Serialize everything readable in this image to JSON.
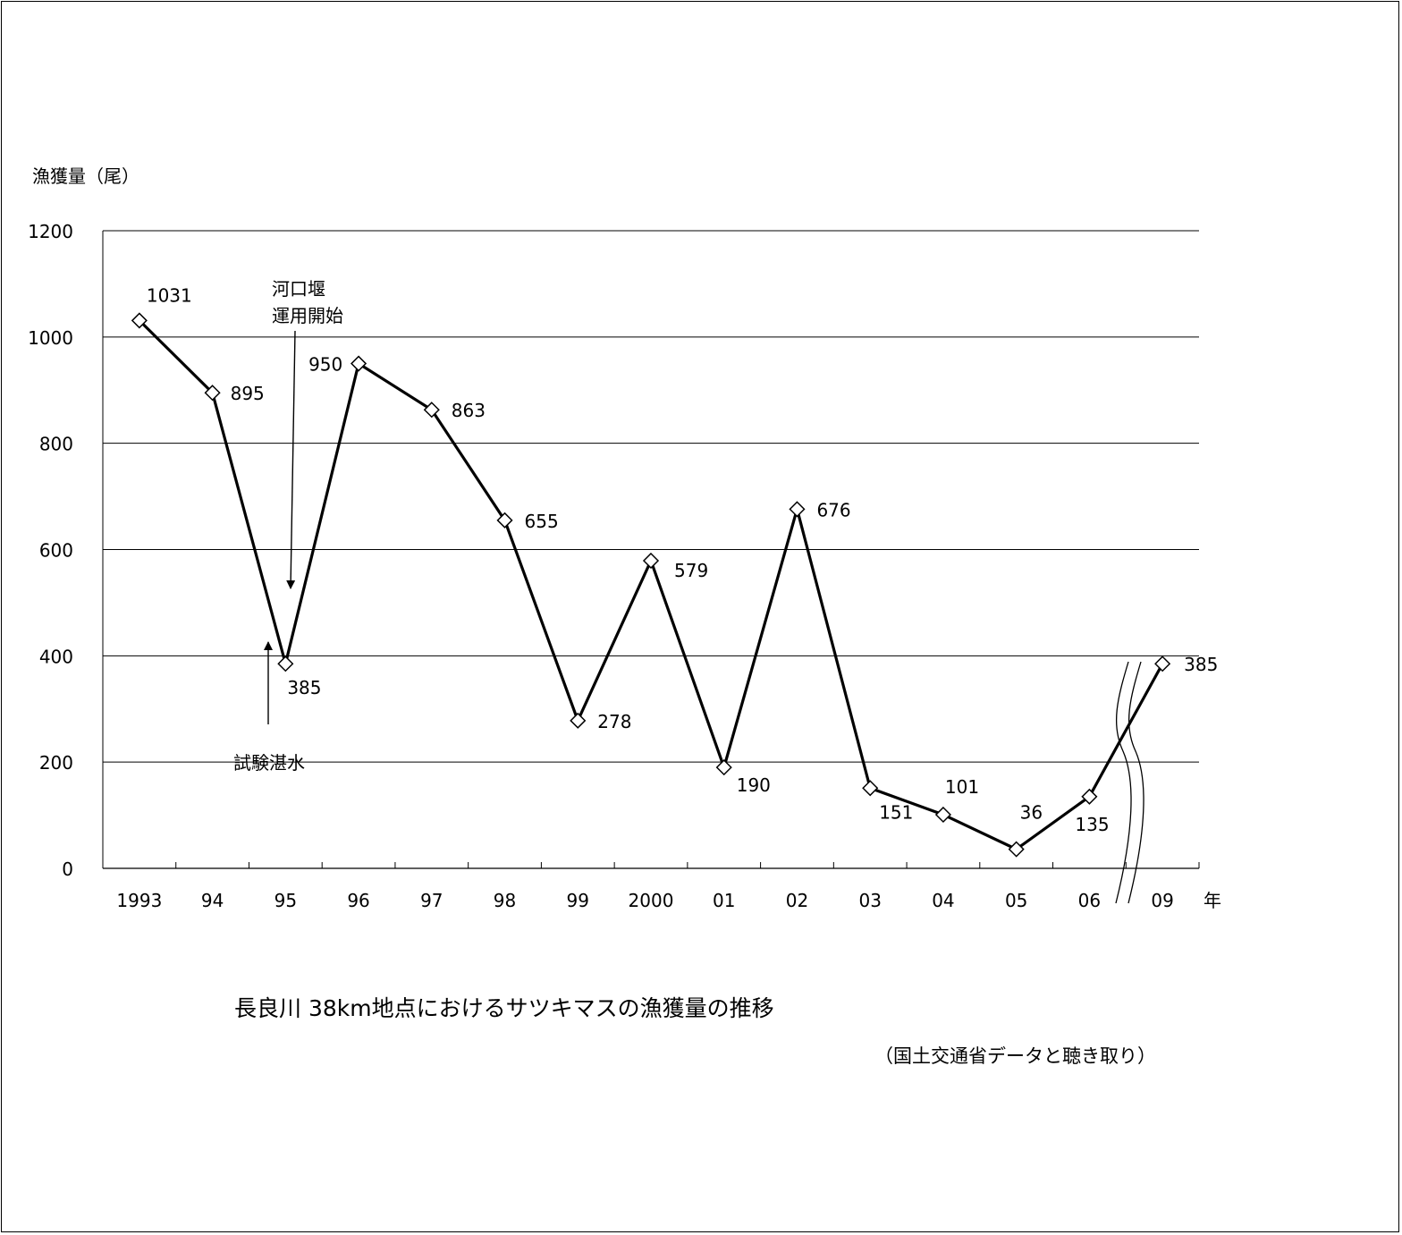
{
  "chart_data": {
    "type": "line",
    "title": "長良川 38km地点におけるサツキマスの漁獲量の推移",
    "source": "（国土交通省データと聴き取り）",
    "ylabel": "漁獲量（尾）",
    "xlabel": "年",
    "ylim": [
      0,
      1200
    ],
    "y_ticks": [
      "0",
      "200",
      "400",
      "600",
      "800",
      "1000",
      "1200"
    ],
    "grid": true,
    "categories": [
      "1993",
      "94",
      "95",
      "96",
      "97",
      "98",
      "99",
      "2000",
      "01",
      "02",
      "03",
      "04",
      "05",
      "06",
      "09"
    ],
    "series": [
      {
        "values": [
          1031,
          895,
          385,
          950,
          863,
          655,
          278,
          579,
          190,
          676,
          151,
          101,
          36,
          135,
          385
        ],
        "labels": [
          "1031",
          "895",
          "385",
          "950",
          "863",
          "655",
          "278",
          "579",
          "190",
          "676",
          "151",
          "101",
          "36",
          "135",
          "385"
        ]
      }
    ],
    "axis_break_between": [
      "06",
      "09"
    ],
    "annotations": [
      {
        "text_lines": [
          "河口堰",
          "運用開始"
        ],
        "target": "95"
      },
      {
        "text_lines": [
          "試験湛水"
        ],
        "target": "95"
      }
    ]
  }
}
